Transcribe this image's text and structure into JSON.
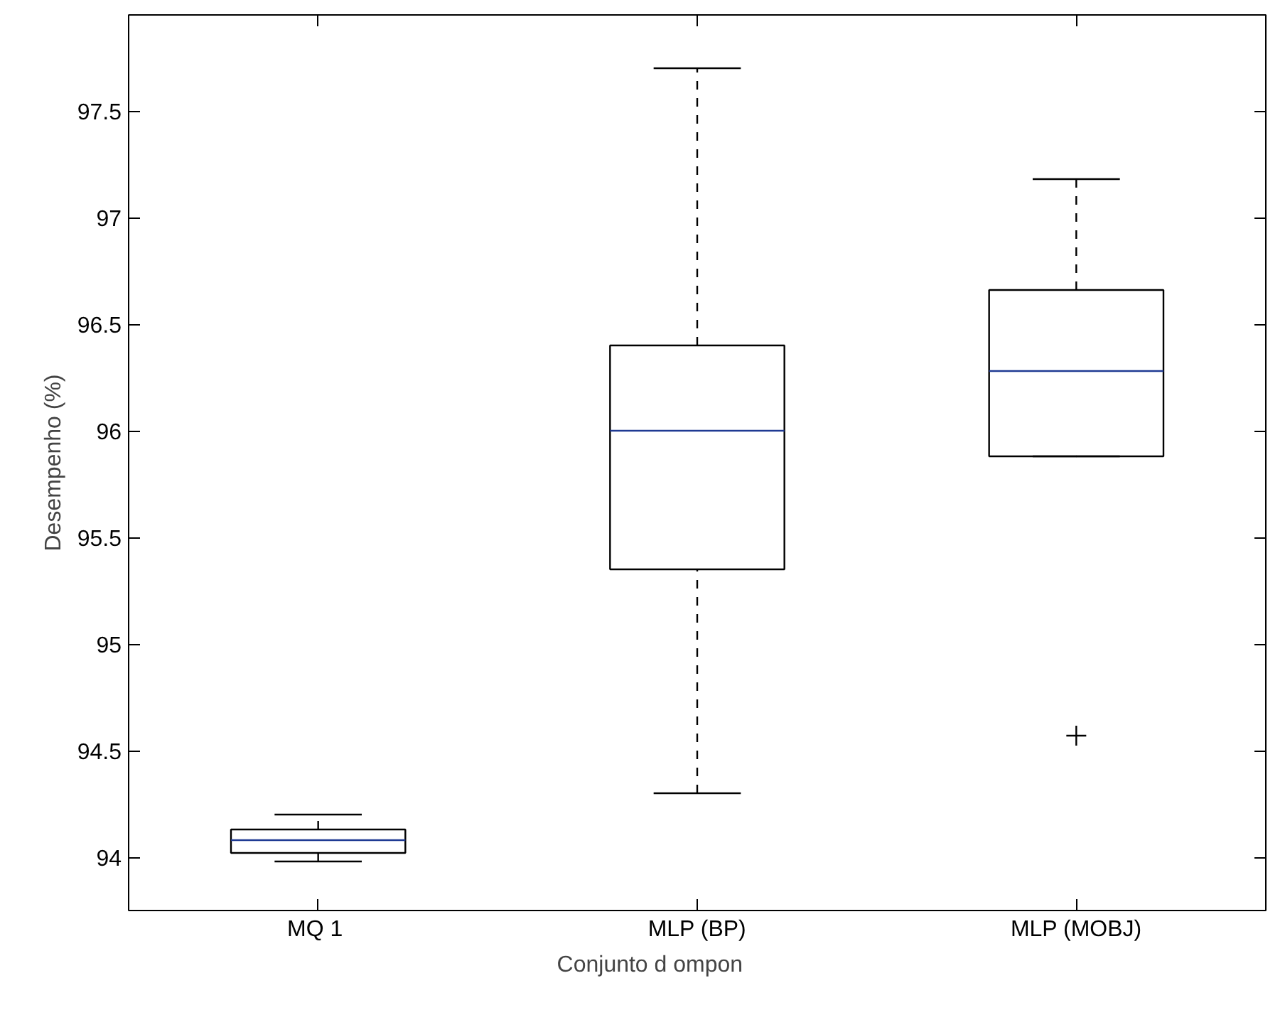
{
  "chart_data": {
    "type": "box",
    "xlabel": "Conjunto d                ompon",
    "ylabel": "Desempenho (%)",
    "categories": [
      "MQ  1",
      "MLP (BP)",
      "MLP (MOBJ)"
    ],
    "boxes": [
      {
        "low": 93.98,
        "q1": 94.02,
        "median": 94.08,
        "q3": 94.13,
        "high": 94.2
      },
      {
        "low": 94.3,
        "q1": 95.35,
        "median": 96.0,
        "q3": 96.4,
        "high": 97.7
      },
      {
        "low": 95.88,
        "q1": 95.88,
        "median": 96.28,
        "q3": 96.66,
        "high": 97.18,
        "outliers": [
          94.57
        ]
      }
    ],
    "color": "#000000",
    "ylim": [
      93.75,
      97.95
    ],
    "yticks": [
      94,
      94.5,
      95,
      95.5,
      96,
      96.5,
      97,
      97.5
    ],
    "grid": false,
    "line_style": "dashed"
  }
}
